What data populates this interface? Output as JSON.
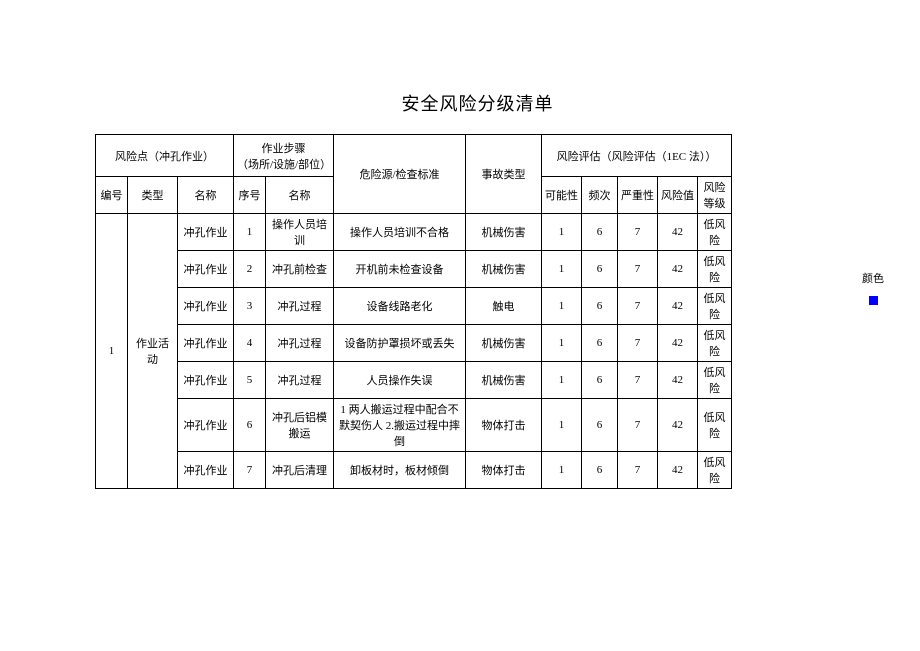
{
  "title": "安全风险分级清单",
  "header": {
    "risk_point": "风险点（冲孔作业）",
    "work_steps": "作业步骤",
    "work_steps_sub": "（场所/设施/部位）",
    "hazard_source": "危险源/检查标准",
    "accident_type": "事故类型",
    "risk_assessment": "风险评估（风险评估（1EC 法））",
    "cols": {
      "num": "编号",
      "type": "类型",
      "name": "名称",
      "step_num": "序号",
      "step_name": "名称",
      "possibility": "可能性",
      "frequency": "频次",
      "severity": "严重性",
      "risk_value": "风险值",
      "risk_level": "风险等级"
    }
  },
  "side": {
    "color_label": "颜色",
    "swatch_color": "#0000ff"
  },
  "group": {
    "num": "1",
    "type": "作业活动"
  },
  "rows": [
    {
      "name": "冲孔作业",
      "step_num": "1",
      "step_name": "操作人员培训",
      "hazard": "操作人员培训不合格",
      "accident": "机械伤害",
      "p": "1",
      "f": "6",
      "s": "7",
      "v": "42",
      "lvl": "低风险"
    },
    {
      "name": "冲孔作业",
      "step_num": "2",
      "step_name": "冲孔前检查",
      "hazard": "开机前未检查设备",
      "accident": "机械伤害",
      "p": "1",
      "f": "6",
      "s": "7",
      "v": "42",
      "lvl": "低风险"
    },
    {
      "name": "冲孔作业",
      "step_num": "3",
      "step_name": "冲孔过程",
      "hazard": "设备线路老化",
      "accident": "触电",
      "p": "1",
      "f": "6",
      "s": "7",
      "v": "42",
      "lvl": "低风险"
    },
    {
      "name": "冲孔作业",
      "step_num": "4",
      "step_name": "冲孔过程",
      "hazard": "设备防护罩损坏或丢失",
      "accident": "机械伤害",
      "p": "1",
      "f": "6",
      "s": "7",
      "v": "42",
      "lvl": "低风险"
    },
    {
      "name": "冲孔作业",
      "step_num": "5",
      "step_name": "冲孔过程",
      "hazard": "人员操作失误",
      "accident": "机械伤害",
      "p": "1",
      "f": "6",
      "s": "7",
      "v": "42",
      "lvl": "低风险"
    },
    {
      "name": "冲孔作业",
      "step_num": "6",
      "step_name": "冲孔后铝模搬运",
      "hazard": "1 两人搬运过程中配合不默契伤人 2.搬运过程中摔倒",
      "accident": "物体打击",
      "p": "1",
      "f": "6",
      "s": "7",
      "v": "42",
      "lvl": "低风险"
    },
    {
      "name": "冲孔作业",
      "step_num": "7",
      "step_name": "冲孔后清理",
      "hazard": "卸板材时，板材倾倒",
      "accident": "物体打击",
      "p": "1",
      "f": "6",
      "s": "7",
      "v": "42",
      "lvl": "低风险"
    }
  ]
}
